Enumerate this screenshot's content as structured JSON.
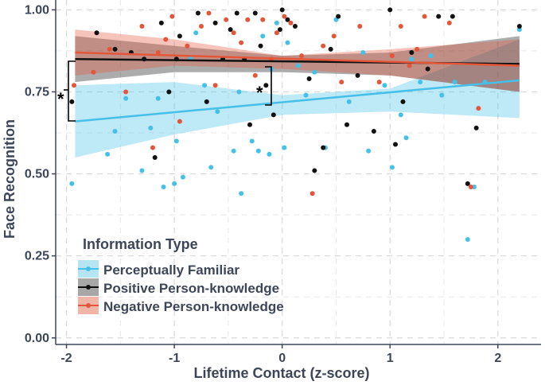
{
  "chart_data": {
    "type": "scatter",
    "title": "",
    "xlabel": "Lifetime Contact (z-score)",
    "ylabel": "Face Recognition",
    "xlim": [
      -2.1,
      2.4
    ],
    "ylim": [
      -0.02,
      1.03
    ],
    "x_ticks": [
      -2,
      -1,
      0,
      1,
      2
    ],
    "x_tick_labels": [
      "-2",
      "-1",
      "0",
      "1",
      "2"
    ],
    "y_ticks": [
      0,
      0.25,
      0.5,
      0.75,
      1.0
    ],
    "y_tick_labels": [
      "0.00",
      "0.25",
      "0.50",
      "0.75",
      "1.00"
    ],
    "grid": true,
    "legend": {
      "title": "Information Type",
      "position": "bottom-left",
      "entries": [
        "Perceptually Familiar",
        "Positive Person-knowledge",
        "Negative Person-knowledge"
      ]
    },
    "annotations": [
      {
        "text": "*",
        "near_x": -2.0,
        "near_y": 0.75,
        "note": "bracket between Perceptually Familiar and person-knowledge fits at left edge"
      },
      {
        "text": "*",
        "near_x": -0.15,
        "near_y": 0.79,
        "note": "bracket between Perceptually Familiar and person-knowledge fits near x = -0.1"
      }
    ],
    "series": [
      {
        "name": "Perceptually Familiar",
        "color": "#45c0e8",
        "fit": {
          "x": [
            -1.92,
            2.2
          ],
          "y": [
            0.66,
            0.785
          ]
        },
        "band": {
          "x": [
            -1.92,
            -1.0,
            0.0,
            1.0,
            2.2
          ],
          "lower": [
            0.55,
            0.62,
            0.68,
            0.69,
            0.67
          ],
          "upper": [
            0.77,
            0.78,
            0.74,
            0.76,
            0.91
          ]
        },
        "points": [
          {
            "x": -1.95,
            "y": 0.47
          },
          {
            "x": -1.62,
            "y": 0.56
          },
          {
            "x": -1.55,
            "y": 0.63
          },
          {
            "x": -1.45,
            "y": 0.73
          },
          {
            "x": -1.3,
            "y": 0.51
          },
          {
            "x": -1.22,
            "y": 0.64
          },
          {
            "x": -1.15,
            "y": 0.73
          },
          {
            "x": -1.1,
            "y": 0.46
          },
          {
            "x": -1.0,
            "y": 0.47
          },
          {
            "x": -0.98,
            "y": 0.6
          },
          {
            "x": -0.92,
            "y": 0.49
          },
          {
            "x": -0.85,
            "y": 0.85
          },
          {
            "x": -0.8,
            "y": 0.93
          },
          {
            "x": -0.72,
            "y": 0.77
          },
          {
            "x": -0.66,
            "y": 0.52
          },
          {
            "x": -0.6,
            "y": 0.69
          },
          {
            "x": -0.45,
            "y": 0.57
          },
          {
            "x": -0.4,
            "y": 0.75
          },
          {
            "x": -0.38,
            "y": 0.44
          },
          {
            "x": -0.28,
            "y": 0.6
          },
          {
            "x": -0.22,
            "y": 0.57
          },
          {
            "x": -0.18,
            "y": 0.92
          },
          {
            "x": -0.12,
            "y": 0.56
          },
          {
            "x": -0.1,
            "y": 0.82
          },
          {
            "x": -0.05,
            "y": 0.96
          },
          {
            "x": 0.02,
            "y": 0.58
          },
          {
            "x": 0.05,
            "y": 0.9
          },
          {
            "x": 0.15,
            "y": 0.83
          },
          {
            "x": 0.22,
            "y": 0.74
          },
          {
            "x": 0.3,
            "y": 0.81
          },
          {
            "x": 0.4,
            "y": 0.58
          },
          {
            "x": 0.5,
            "y": 0.97
          },
          {
            "x": 0.62,
            "y": 0.72
          },
          {
            "x": 0.75,
            "y": 0.87
          },
          {
            "x": 0.8,
            "y": 0.57
          },
          {
            "x": 0.95,
            "y": 0.77
          },
          {
            "x": 1.02,
            "y": 0.52
          },
          {
            "x": 1.1,
            "y": 0.68
          },
          {
            "x": 1.15,
            "y": 0.61
          },
          {
            "x": 1.2,
            "y": 0.85
          },
          {
            "x": 1.28,
            "y": 0.78
          },
          {
            "x": 1.38,
            "y": 0.86
          },
          {
            "x": 1.48,
            "y": 0.74
          },
          {
            "x": 1.6,
            "y": 0.78
          },
          {
            "x": 1.72,
            "y": 0.3
          },
          {
            "x": 1.78,
            "y": 0.46
          },
          {
            "x": 1.88,
            "y": 0.78
          },
          {
            "x": 2.2,
            "y": 0.94
          }
        ]
      },
      {
        "name": "Positive Person-knowledge",
        "color": "#111111",
        "fit": {
          "x": [
            -1.92,
            2.2
          ],
          "y": [
            0.85,
            0.835
          ]
        },
        "band": {
          "x": [
            -1.92,
            -1.0,
            0.0,
            1.0,
            2.2
          ],
          "lower": [
            0.78,
            0.81,
            0.81,
            0.8,
            0.75
          ],
          "upper": [
            0.92,
            0.89,
            0.86,
            0.87,
            0.92
          ]
        },
        "points": [
          {
            "x": -1.95,
            "y": 0.72
          },
          {
            "x": -1.72,
            "y": 0.93
          },
          {
            "x": -1.55,
            "y": 0.88
          },
          {
            "x": -1.4,
            "y": 0.87
          },
          {
            "x": -1.28,
            "y": 0.85
          },
          {
            "x": -1.18,
            "y": 0.55
          },
          {
            "x": -1.12,
            "y": 0.96
          },
          {
            "x": -1.05,
            "y": 0.75
          },
          {
            "x": -0.98,
            "y": 0.85
          },
          {
            "x": -0.95,
            "y": 0.92
          },
          {
            "x": -0.78,
            "y": 0.99
          },
          {
            "x": -0.7,
            "y": 0.72
          },
          {
            "x": -0.62,
            "y": 0.96
          },
          {
            "x": -0.55,
            "y": 0.85
          },
          {
            "x": -0.48,
            "y": 0.94
          },
          {
            "x": -0.42,
            "y": 0.99
          },
          {
            "x": -0.35,
            "y": 0.85
          },
          {
            "x": -0.3,
            "y": 0.65
          },
          {
            "x": -0.25,
            "y": 0.99
          },
          {
            "x": -0.2,
            "y": 0.89
          },
          {
            "x": -0.15,
            "y": 0.77
          },
          {
            "x": -0.08,
            "y": 0.68
          },
          {
            "x": -0.02,
            "y": 0.94
          },
          {
            "x": 0.0,
            "y": 1.0
          },
          {
            "x": 0.05,
            "y": 0.97
          },
          {
            "x": 0.12,
            "y": 0.95
          },
          {
            "x": 0.25,
            "y": 0.79
          },
          {
            "x": 0.3,
            "y": 0.51
          },
          {
            "x": 0.38,
            "y": 0.58
          },
          {
            "x": 0.45,
            "y": 0.88
          },
          {
            "x": 0.52,
            "y": 0.98
          },
          {
            "x": 0.6,
            "y": 0.65
          },
          {
            "x": 0.7,
            "y": 0.8
          },
          {
            "x": 0.85,
            "y": 0.63
          },
          {
            "x": 1.0,
            "y": 1.0
          },
          {
            "x": 1.05,
            "y": 0.59
          },
          {
            "x": 1.12,
            "y": 0.72
          },
          {
            "x": 1.2,
            "y": 0.87
          },
          {
            "x": 1.35,
            "y": 0.82
          },
          {
            "x": 1.45,
            "y": 0.98
          },
          {
            "x": 1.58,
            "y": 0.98
          },
          {
            "x": 1.72,
            "y": 0.47
          },
          {
            "x": 1.8,
            "y": 0.64
          },
          {
            "x": 2.2,
            "y": 0.95
          }
        ]
      },
      {
        "name": "Negative Person-knowledge",
        "color": "#e4563a",
        "fit": {
          "x": [
            -1.92,
            2.2
          ],
          "y": [
            0.87,
            0.83
          ]
        },
        "band": {
          "x": [
            -1.92,
            -1.0,
            0.0,
            1.0,
            2.2
          ],
          "lower": [
            0.8,
            0.83,
            0.82,
            0.8,
            0.75
          ],
          "upper": [
            0.94,
            0.91,
            0.86,
            0.88,
            0.91
          ]
        },
        "points": [
          {
            "x": -1.93,
            "y": 0.77
          },
          {
            "x": -1.75,
            "y": 0.81
          },
          {
            "x": -1.6,
            "y": 0.88
          },
          {
            "x": -1.45,
            "y": 0.75
          },
          {
            "x": -1.3,
            "y": 0.95
          },
          {
            "x": -1.2,
            "y": 0.58
          },
          {
            "x": -1.15,
            "y": 0.87
          },
          {
            "x": -1.08,
            "y": 0.91
          },
          {
            "x": -1.02,
            "y": 0.98
          },
          {
            "x": -0.95,
            "y": 0.66
          },
          {
            "x": -0.88,
            "y": 0.89
          },
          {
            "x": -0.75,
            "y": 0.95
          },
          {
            "x": -0.68,
            "y": 0.99
          },
          {
            "x": -0.62,
            "y": 0.77
          },
          {
            "x": -0.52,
            "y": 0.97
          },
          {
            "x": -0.45,
            "y": 0.93
          },
          {
            "x": -0.38,
            "y": 0.9
          },
          {
            "x": -0.32,
            "y": 0.97
          },
          {
            "x": -0.25,
            "y": 0.8
          },
          {
            "x": -0.18,
            "y": 0.97
          },
          {
            "x": -0.1,
            "y": 0.85
          },
          {
            "x": -0.05,
            "y": 0.93
          },
          {
            "x": 0.02,
            "y": 0.98
          },
          {
            "x": 0.08,
            "y": 0.96
          },
          {
            "x": 0.18,
            "y": 0.86
          },
          {
            "x": 0.28,
            "y": 0.44
          },
          {
            "x": 0.38,
            "y": 0.89
          },
          {
            "x": 0.48,
            "y": 0.92
          },
          {
            "x": 0.55,
            "y": 0.78
          },
          {
            "x": 0.72,
            "y": 0.95
          },
          {
            "x": 0.9,
            "y": 0.78
          },
          {
            "x": 1.02,
            "y": 0.86
          },
          {
            "x": 1.1,
            "y": 0.95
          },
          {
            "x": 1.18,
            "y": 0.83
          },
          {
            "x": 1.25,
            "y": 0.88
          },
          {
            "x": 1.32,
            "y": 0.98
          },
          {
            "x": 1.55,
            "y": 0.96
          },
          {
            "x": 1.75,
            "y": 0.46
          },
          {
            "x": 1.82,
            "y": 0.7
          }
        ]
      }
    ]
  }
}
